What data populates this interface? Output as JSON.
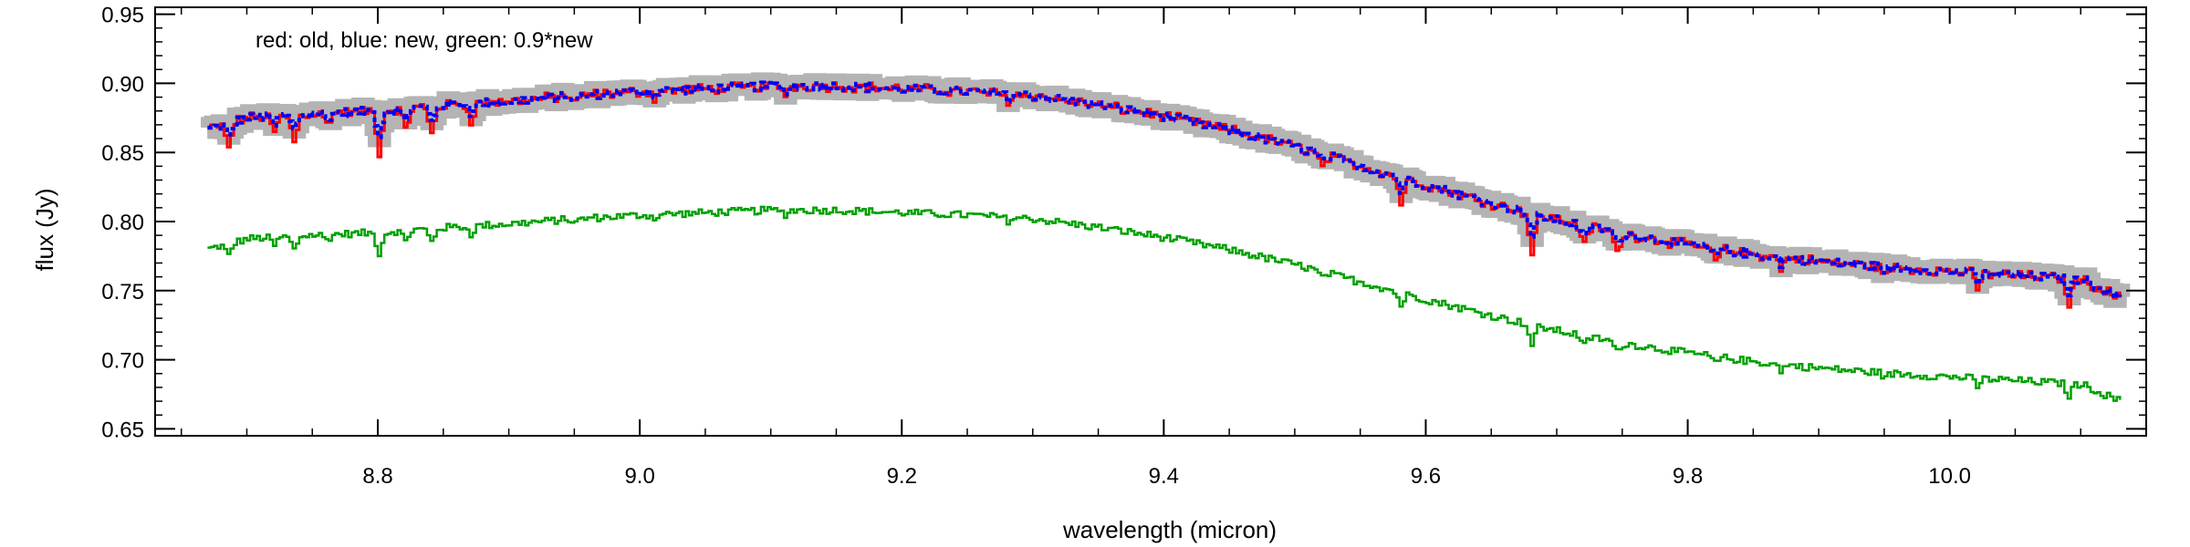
{
  "chart_data": {
    "type": "line",
    "xlabel": "wavelength (micron)",
    "ylabel": "flux (Jy)",
    "annotation": "red: old, blue: new, green: 0.9*new",
    "xlim": [
      8.63,
      10.15
    ],
    "ylim": [
      0.645,
      0.955
    ],
    "x_ticks": [
      8.8,
      9.0,
      9.2,
      9.4,
      9.6,
      9.8,
      10.0
    ],
    "x_tick_labels": [
      "8.8",
      "9.0",
      "9.2",
      "9.4",
      "9.6",
      "9.8",
      "10.0"
    ],
    "y_ticks": [
      0.65,
      0.7,
      0.75,
      0.8,
      0.85,
      0.9,
      0.95
    ],
    "y_tick_labels": [
      "0.65",
      "0.70",
      "0.75",
      "0.80",
      "0.85",
      "0.90",
      "0.95"
    ],
    "grid": false,
    "colors": {
      "old": "#ff0000",
      "new": "#0000ff",
      "scaled": "#00a000",
      "band": "#b4b4b4"
    },
    "continuum": {
      "x": [
        8.67,
        8.7,
        8.75,
        8.8,
        8.85,
        8.9,
        8.95,
        9.0,
        9.05,
        9.1,
        9.15,
        9.2,
        9.25,
        9.3,
        9.35,
        9.4,
        9.45,
        9.5,
        9.55,
        9.6,
        9.65,
        9.7,
        9.75,
        9.8,
        9.85,
        9.9,
        9.95,
        10.0,
        10.05,
        10.1,
        10.13
      ],
      "y": [
        0.867,
        0.875,
        0.878,
        0.88,
        0.884,
        0.887,
        0.891,
        0.894,
        0.896,
        0.898,
        0.898,
        0.896,
        0.894,
        0.891,
        0.884,
        0.876,
        0.866,
        0.854,
        0.84,
        0.826,
        0.813,
        0.801,
        0.791,
        0.783,
        0.776,
        0.771,
        0.767,
        0.764,
        0.761,
        0.758,
        0.744
      ]
    },
    "absorption_lines": [
      {
        "x": 8.685,
        "depth": 0.018
      },
      {
        "x": 8.72,
        "depth": 0.012
      },
      {
        "x": 8.735,
        "depth": 0.02
      },
      {
        "x": 8.76,
        "depth": 0.008
      },
      {
        "x": 8.8,
        "depth": 0.03
      },
      {
        "x": 8.82,
        "depth": 0.015
      },
      {
        "x": 8.84,
        "depth": 0.02
      },
      {
        "x": 8.87,
        "depth": 0.012
      },
      {
        "x": 8.95,
        "depth": 0.006
      },
      {
        "x": 9.01,
        "depth": 0.005
      },
      {
        "x": 9.11,
        "depth": 0.006
      },
      {
        "x": 9.28,
        "depth": 0.005
      },
      {
        "x": 9.52,
        "depth": 0.01
      },
      {
        "x": 9.58,
        "depth": 0.018
      },
      {
        "x": 9.68,
        "depth": 0.03
      },
      {
        "x": 9.72,
        "depth": 0.015
      },
      {
        "x": 9.745,
        "depth": 0.015
      },
      {
        "x": 9.82,
        "depth": 0.01
      },
      {
        "x": 9.87,
        "depth": 0.008
      },
      {
        "x": 9.95,
        "depth": 0.006
      },
      {
        "x": 10.02,
        "depth": 0.012
      },
      {
        "x": 10.09,
        "depth": 0.018
      }
    ],
    "series": [
      {
        "key": "band",
        "role": "uncertainty band (gray)"
      },
      {
        "key": "old",
        "color": "#ff0000"
      },
      {
        "key": "new",
        "color": "#0000ff"
      },
      {
        "key": "scaled",
        "color": "#00a000",
        "scale": 0.9
      }
    ]
  }
}
